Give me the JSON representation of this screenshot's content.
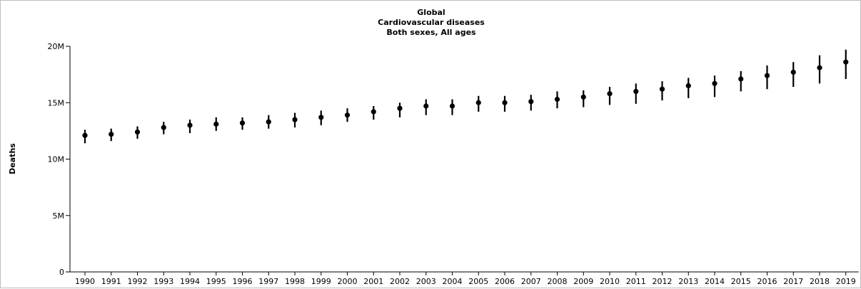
{
  "chart_data": {
    "type": "scatter",
    "title": [
      "Global",
      "Cardiovascular diseases",
      "Both sexes, All ages"
    ],
    "xlabel": "",
    "ylabel": "Deaths",
    "ylim": [
      0,
      20000000
    ],
    "yticks": [
      0,
      5000000,
      10000000,
      15000000,
      20000000
    ],
    "ytick_labels": [
      "0",
      "5M",
      "10M",
      "15M",
      "20M"
    ],
    "grid": false,
    "marker_color": "#000000",
    "series": [
      {
        "x": [
          1990,
          1991,
          1992,
          1993,
          1994,
          1995,
          1996,
          1997,
          1998,
          1999,
          2000,
          2001,
          2002,
          2003,
          2004,
          2005,
          2006,
          2007,
          2008,
          2009,
          2010,
          2011,
          2012,
          2013,
          2014,
          2015,
          2016,
          2017,
          2018,
          2019
        ],
        "values": [
          12100000,
          12200000,
          12400000,
          12800000,
          13000000,
          13100000,
          13200000,
          13300000,
          13500000,
          13700000,
          13900000,
          14200000,
          14500000,
          14700000,
          14700000,
          15000000,
          15000000,
          15100000,
          15300000,
          15500000,
          15800000,
          16000000,
          16200000,
          16500000,
          16700000,
          17100000,
          17400000,
          17700000,
          18100000,
          18600000
        ],
        "lower": [
          11400000,
          11600000,
          11800000,
          12200000,
          12300000,
          12500000,
          12600000,
          12700000,
          12800000,
          13000000,
          13300000,
          13500000,
          13700000,
          13900000,
          13900000,
          14200000,
          14200000,
          14300000,
          14500000,
          14600000,
          14800000,
          14900000,
          15200000,
          15400000,
          15500000,
          16000000,
          16200000,
          16400000,
          16700000,
          17100000
        ],
        "upper": [
          12600000,
          12700000,
          12900000,
          13300000,
          13500000,
          13700000,
          13700000,
          13900000,
          14100000,
          14300000,
          14500000,
          14700000,
          15000000,
          15300000,
          15300000,
          15600000,
          15600000,
          15700000,
          16000000,
          16100000,
          16400000,
          16700000,
          16900000,
          17200000,
          17400000,
          17800000,
          18300000,
          18600000,
          19200000,
          19700000
        ]
      }
    ]
  }
}
